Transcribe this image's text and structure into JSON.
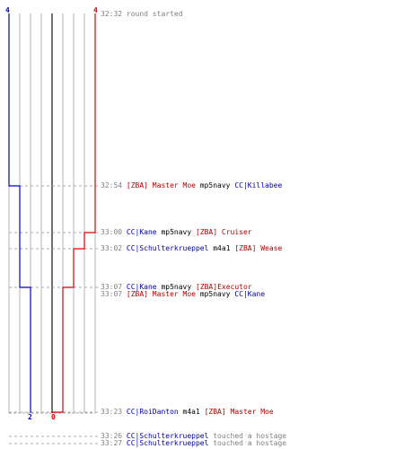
{
  "colors": {
    "blue": "#0000cc",
    "red": "#dd0000",
    "grid": "#b4b4b4",
    "center": "#707070",
    "dash": "#aaaaaa",
    "time": "#808080"
  },
  "team_scores": {
    "blue_start": "4",
    "red_start": "4",
    "blue_end": "2",
    "red_end": "0"
  },
  "events": [
    {
      "time": "32:32",
      "parts": [
        {
          "text": "round started",
          "team": "time"
        }
      ]
    },
    {
      "time": "32:54",
      "parts": [
        {
          "text": "[ZBA] Master Moe",
          "team": "red"
        },
        {
          "text": " mp5navy ",
          "team": "plain"
        },
        {
          "text": "CC|Killabee",
          "team": "blue"
        }
      ]
    },
    {
      "time": "33:00",
      "parts": [
        {
          "text": "CC|Kane",
          "team": "blue"
        },
        {
          "text": " mp5navy ",
          "team": "plain"
        },
        {
          "text": "[ZBA] Cruiser",
          "team": "red"
        }
      ]
    },
    {
      "time": "33:02",
      "parts": [
        {
          "text": "CC|Schulterkrueppel",
          "team": "blue"
        },
        {
          "text": " m4a1 ",
          "team": "plain"
        },
        {
          "text": "[ZBA] Wease",
          "team": "red"
        }
      ]
    },
    {
      "time": "33:07",
      "parts": [
        {
          "text": "CC|Kane",
          "team": "blue"
        },
        {
          "text": " mp5navy ",
          "team": "plain"
        },
        {
          "text": "[ZBA]Executor",
          "team": "red"
        }
      ]
    },
    {
      "time": "33:07",
      "parts": [
        {
          "text": "[ZBA] Master Moe",
          "team": "red"
        },
        {
          "text": " mp5navy ",
          "team": "plain"
        },
        {
          "text": "CC|Kane",
          "team": "blue"
        }
      ]
    },
    {
      "time": "33:23",
      "parts": [
        {
          "text": "CC|RoiDanton",
          "team": "blue"
        },
        {
          "text": " m4a1 ",
          "team": "plain"
        },
        {
          "text": "[ZBA] Master Moe",
          "team": "red"
        }
      ]
    },
    {
      "time": "33:26",
      "parts": [
        {
          "text": "CC|Schulterkrueppel",
          "team": "blue"
        },
        {
          "text": " touched a hostage",
          "team": "time"
        }
      ]
    },
    {
      "time": "33:27",
      "parts": [
        {
          "text": "CC|Schulterkrueppel",
          "team": "blue"
        },
        {
          "text": " touched a hostage",
          "team": "time"
        }
      ]
    }
  ]
}
